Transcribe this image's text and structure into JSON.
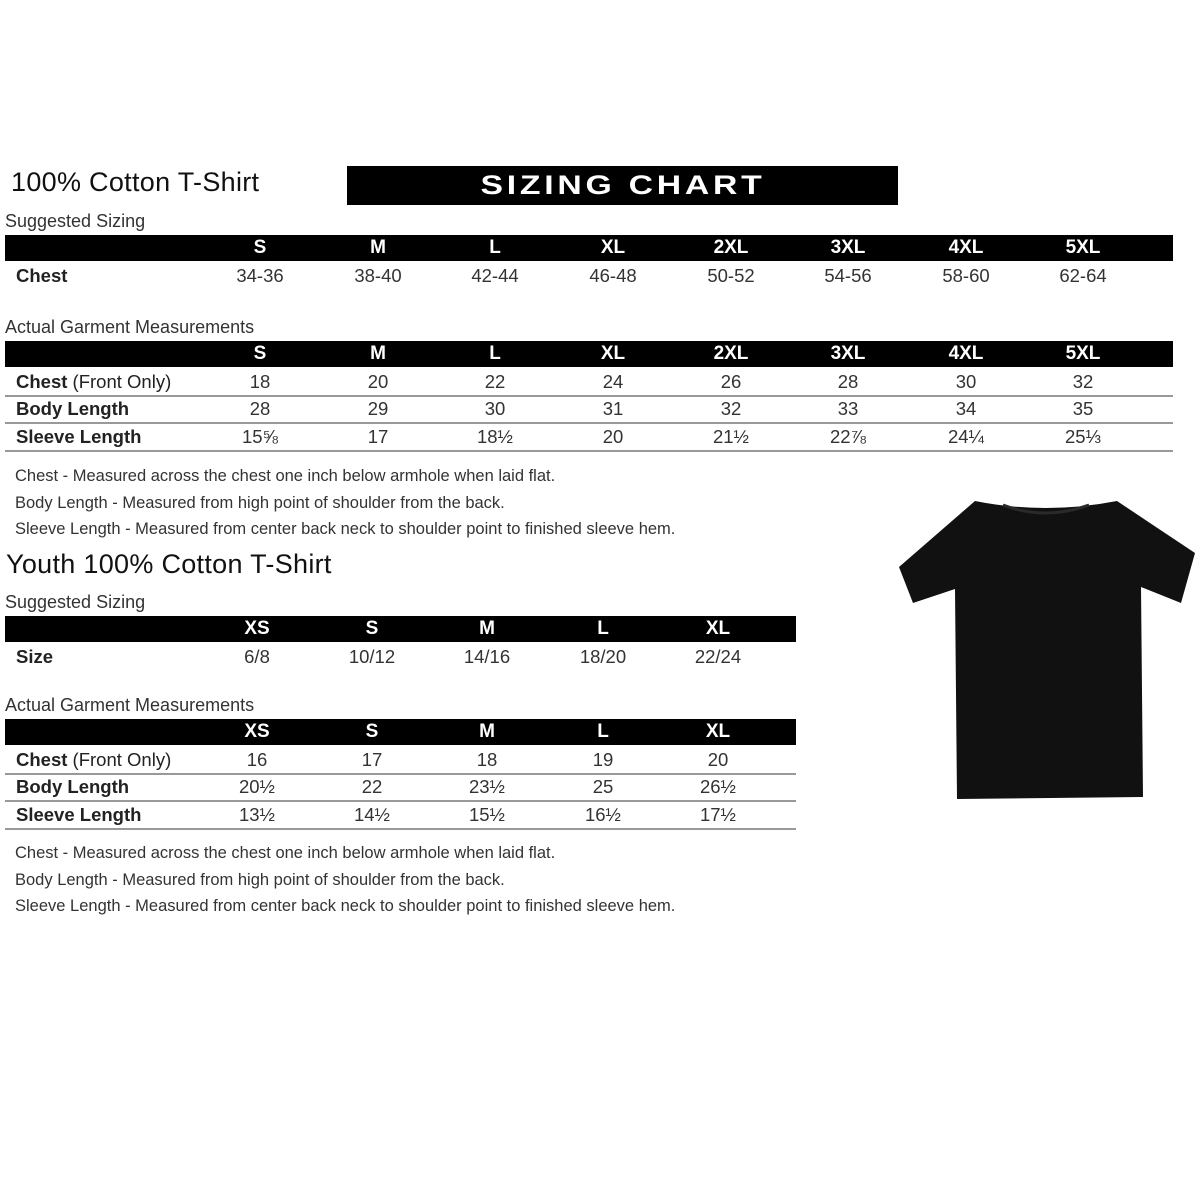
{
  "adult": {
    "title": "100% Cotton T-Shirt",
    "banner": "SIZING CHART",
    "suggested_label": "Suggested Sizing",
    "sizes": [
      "S",
      "M",
      "L",
      "XL",
      "2XL",
      "3XL",
      "4XL",
      "5XL"
    ],
    "suggested_rows": [
      {
        "label": "Chest",
        "values": [
          "34-36",
          "38-40",
          "42-44",
          "46-48",
          "50-52",
          "54-56",
          "58-60",
          "62-64"
        ]
      }
    ],
    "actual_label": "Actual Garment Measurements",
    "actual_rows": [
      {
        "label": "Chest",
        "label_extra": " (Front Only)",
        "values": [
          "18",
          "20",
          "22",
          "24",
          "26",
          "28",
          "30",
          "32"
        ]
      },
      {
        "label": "Body Length",
        "label_extra": "",
        "values": [
          "28",
          "29",
          "30",
          "31",
          "32",
          "33",
          "34",
          "35"
        ]
      },
      {
        "label": "Sleeve Length",
        "label_extra": "",
        "values": [
          "15⅝",
          "17",
          "18½",
          "20",
          "21½",
          "22⅞",
          "24¼",
          "25⅓"
        ]
      }
    ],
    "notes": [
      "Chest - Measured across the chest one inch below armhole when laid flat.",
      "Body Length - Measured from high point of shoulder from the back.",
      "Sleeve Length - Measured from center back neck to shoulder point to finished sleeve hem."
    ]
  },
  "youth": {
    "title": "Youth 100% Cotton T-Shirt",
    "suggested_label": "Suggested Sizing",
    "sizes": [
      "XS",
      "S",
      "M",
      "L",
      "XL"
    ],
    "suggested_rows": [
      {
        "label": "Size",
        "values": [
          "6/8",
          "10/12",
          "14/16",
          "18/20",
          "22/24"
        ]
      }
    ],
    "actual_label": "Actual Garment Measurements",
    "actual_rows": [
      {
        "label": "Chest",
        "label_extra": " (Front Only)",
        "values": [
          "16",
          "17",
          "18",
          "19",
          "20"
        ]
      },
      {
        "label": "Body Length",
        "label_extra": "",
        "values": [
          "20½",
          "22",
          "23½",
          "25",
          "26½"
        ]
      },
      {
        "label": "Sleeve Length",
        "label_extra": "",
        "values": [
          "13½",
          "14½",
          "15½",
          "16½",
          "17½"
        ]
      }
    ],
    "notes": [
      "Chest - Measured across the chest one inch below armhole when laid flat.",
      "Body Length - Measured from high point of shoulder from the back.",
      "Sleeve Length - Measured from center back neck to shoulder point to finished sleeve hem."
    ]
  },
  "image": {
    "icon": "tshirt-icon",
    "color": "#111111"
  }
}
